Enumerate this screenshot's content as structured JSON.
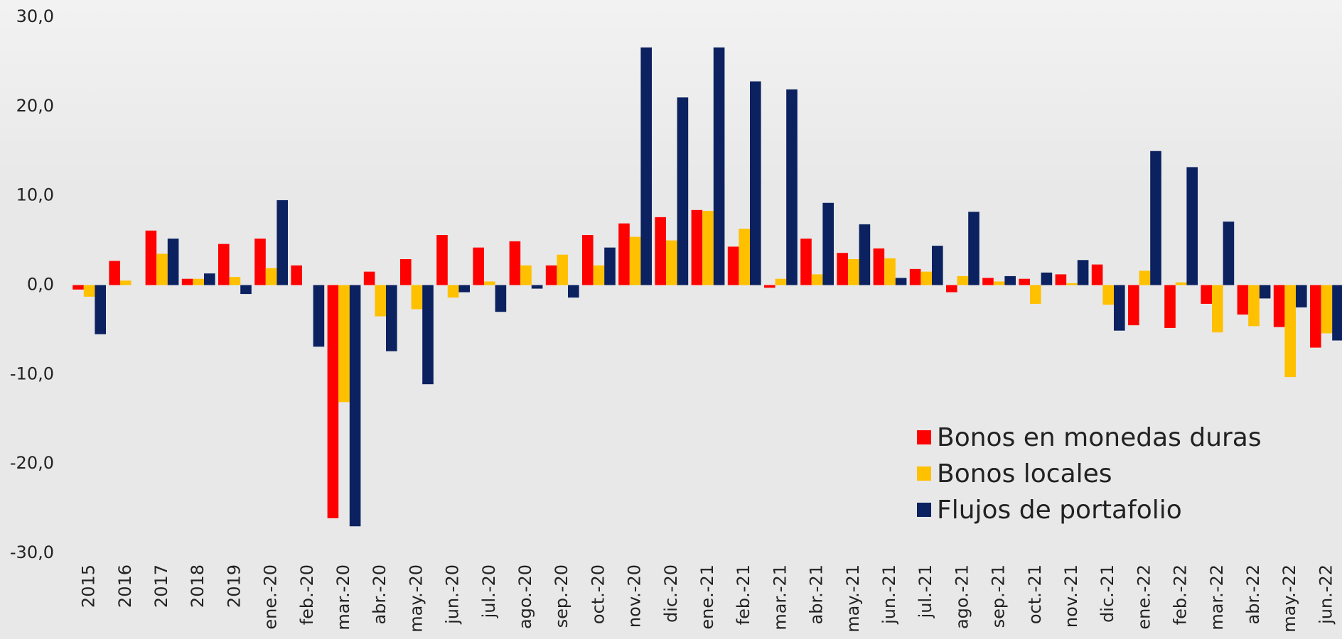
{
  "chart_data": {
    "type": "bar",
    "categories": [
      "2015",
      "2016",
      "2017",
      "2018",
      "2019",
      "ene.-20",
      "feb.-20",
      "mar.-20",
      "abr.-20",
      "may.-20",
      "jun.-20",
      "jul.-20",
      "ago.-20",
      "sep.-20",
      "oct.-20",
      "nov.-20",
      "dic.-20",
      "ene.-21",
      "feb.-21",
      "mar.-21",
      "abr.-21",
      "may.-21",
      "jun.-21",
      "jul.-21",
      "ago.-21",
      "sep.-21",
      "oct.-21",
      "nov.-21",
      "dic.-21",
      "ene.-22",
      "feb.-22",
      "mar.-22",
      "abr.-22",
      "may.-22",
      "jun.-22"
    ],
    "series": [
      {
        "name": "Bonos en monedas duras",
        "color": "#ff0000",
        "values": [
          -0.5,
          2.7,
          6.1,
          0.7,
          4.6,
          5.2,
          2.2,
          -26.1,
          1.5,
          2.9,
          5.6,
          4.2,
          4.9,
          2.2,
          5.6,
          6.9,
          7.6,
          8.4,
          4.3,
          -0.3,
          5.2,
          3.6,
          4.1,
          1.8,
          -0.8,
          0.8,
          0.7,
          1.2,
          2.3,
          -4.5,
          -4.8,
          -2.1,
          -3.3,
          -4.7,
          -7.0
        ]
      },
      {
        "name": "Bonos locales",
        "color": "#ffc000",
        "values": [
          -1.3,
          0.5,
          3.5,
          0.7,
          0.9,
          1.9,
          0,
          -13.1,
          -3.5,
          -2.7,
          -1.4,
          0.4,
          2.2,
          3.4,
          2.2,
          5.4,
          5.0,
          8.3,
          6.3,
          0.7,
          1.2,
          2.9,
          3.0,
          1.5,
          1.0,
          0.4,
          -2.1,
          0.2,
          -2.2,
          1.6,
          0.3,
          -5.3,
          -4.6,
          -10.3,
          -5.4
        ]
      },
      {
        "name": "Flujos de portafolio",
        "color": "#0b2160",
        "values": [
          -5.5,
          0,
          5.2,
          1.3,
          -1.0,
          9.5,
          -6.9,
          -27.0,
          -7.4,
          -11.1,
          -0.8,
          -3.0,
          -0.4,
          -1.4,
          4.2,
          26.6,
          21.0,
          26.6,
          22.8,
          21.9,
          9.2,
          6.8,
          0.8,
          4.4,
          8.2,
          1.0,
          1.4,
          2.8,
          -5.1,
          15.0,
          13.2,
          7.1,
          -1.5,
          -2.5,
          -6.2
        ]
      }
    ],
    "ylim": [
      -30,
      30
    ],
    "yticks": [
      {
        "value": -30,
        "label": "-30,0"
      },
      {
        "value": -20,
        "label": "-20,0"
      },
      {
        "value": -10,
        "label": "-10,0"
      },
      {
        "value": 0,
        "label": "0,0"
      },
      {
        "value": 10,
        "label": "10,0"
      },
      {
        "value": 20,
        "label": "20,0"
      },
      {
        "value": 30,
        "label": "30,0"
      }
    ],
    "grid": false,
    "legend": "lower right"
  }
}
